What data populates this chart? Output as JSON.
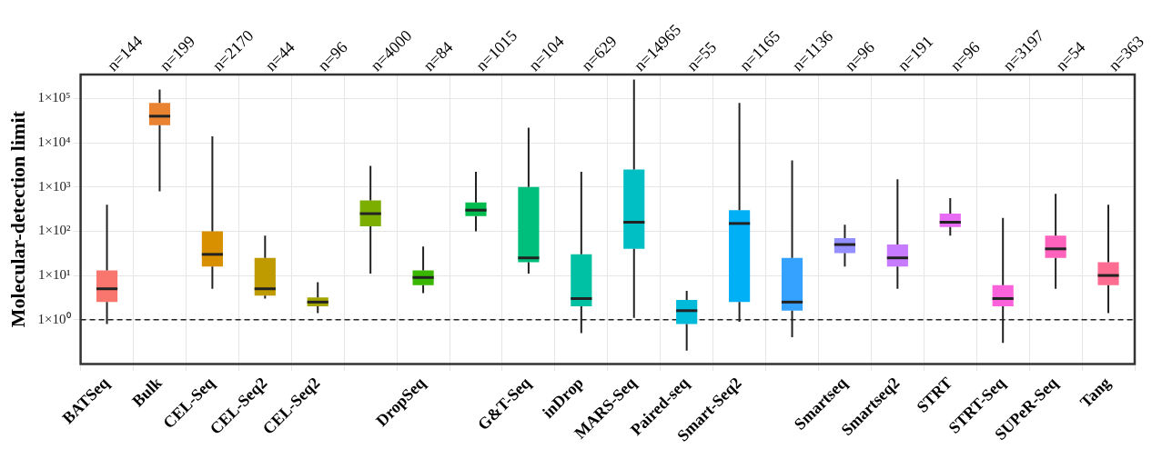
{
  "chart_data": {
    "type": "box",
    "ylabel": "Molecular-detection limit",
    "categories": [
      "BATSeq",
      "Bulk",
      "CEL-Seq",
      "CEL-Seq2",
      "CEL-Seq2",
      null,
      "DropSeq",
      null,
      "G&T-Seq",
      "inDrop",
      "MARS-Seq",
      "Paired-seq",
      "Smart-Seq2",
      null,
      "Smartseq",
      "Smartseq2",
      "STRT",
      "STRT-Seq",
      "SUPeR-Seq",
      "Tang"
    ],
    "colors": [
      "#f8766d",
      "#ea8331",
      "#d89000",
      "#c09b00",
      "#a3a500",
      "#7cae00",
      "#39b600",
      "#00bb4e",
      "#00bf7d",
      "#00c1a3",
      "#00bfc4",
      "#00bad9",
      "#00b0f6",
      "#35a2ff",
      "#9590ff",
      "#c77cff",
      "#e76bf3",
      "#fa62db",
      "#ff62bc",
      "#ff6c91"
    ],
    "boxes": [
      {
        "low": 0.8,
        "q1": 2.5,
        "median": 5,
        "q3": 13,
        "high": 400
      },
      {
        "low": 800,
        "q1": 25000,
        "median": 40000,
        "q3": 80000,
        "high": 160000
      },
      {
        "low": 5,
        "q1": 16,
        "median": 30,
        "q3": 100,
        "high": 14000
      },
      {
        "low": 3,
        "q1": 3.5,
        "median": 5,
        "q3": 25,
        "high": 80
      },
      {
        "low": 1.4,
        "q1": 2,
        "median": 2.5,
        "q3": 3.2,
        "high": 7
      },
      {
        "low": 11,
        "q1": 130,
        "median": 250,
        "q3": 500,
        "high": 3000
      },
      {
        "low": 4,
        "q1": 6,
        "median": 9,
        "q3": 13,
        "high": 45
      },
      {
        "low": 100,
        "q1": 220,
        "median": 300,
        "q3": 450,
        "high": 2200
      },
      {
        "low": 11,
        "q1": 20,
        "median": 25,
        "q3": 1000,
        "high": 22000
      },
      {
        "low": 0.5,
        "q1": 2,
        "median": 3,
        "q3": 30,
        "high": 2200
      },
      {
        "low": 1.1,
        "q1": 40,
        "median": 160,
        "q3": 2500,
        "high": 270000
      },
      {
        "low": 0.2,
        "q1": 0.8,
        "median": 1.6,
        "q3": 2.8,
        "high": 4.5
      },
      {
        "low": 0.9,
        "q1": 2.5,
        "median": 150,
        "q3": 300,
        "high": 80000
      },
      {
        "low": 0.4,
        "q1": 1.6,
        "median": 2.5,
        "q3": 25,
        "high": 4000
      },
      {
        "low": 16,
        "q1": 32,
        "median": 50,
        "q3": 70,
        "high": 140
      },
      {
        "low": 5,
        "q1": 16,
        "median": 25,
        "q3": 50,
        "high": 1500
      },
      {
        "low": 80,
        "q1": 125,
        "median": 160,
        "q3": 250,
        "high": 560
      },
      {
        "low": 0.3,
        "q1": 2,
        "median": 3,
        "q3": 6,
        "high": 200
      },
      {
        "low": 5,
        "q1": 25,
        "median": 40,
        "q3": 80,
        "high": 700
      },
      {
        "low": 1.4,
        "q1": 6,
        "median": 10,
        "q3": 20,
        "high": 400
      }
    ],
    "log": "y",
    "ylim": [
      0.1,
      350000
    ],
    "yticks": [
      {
        "value": 1,
        "label": "1×10⁰"
      },
      {
        "value": 10,
        "label": "1×10¹"
      },
      {
        "value": 100,
        "label": "1×10²"
      },
      {
        "value": 1000,
        "label": "1×10³"
      },
      {
        "value": 10000,
        "label": "1×10⁴"
      },
      {
        "value": 100000,
        "label": "1×10⁵"
      }
    ],
    "grid": true,
    "ref_lines": [
      {
        "axis": "y",
        "value": 1,
        "line_style": "dashed",
        "color": "#222222"
      }
    ],
    "annotations": [
      "n=144",
      "n=199",
      "n=2170",
      "n=44",
      "n=96",
      "n=4000",
      "n=84",
      "n=1015",
      "n=104",
      "n=629",
      "n=14965",
      "n=55",
      "n=1165",
      "n=1136",
      "n=96",
      "n=191",
      "n=96",
      "n=3197",
      "n=54",
      "n=363"
    ]
  }
}
